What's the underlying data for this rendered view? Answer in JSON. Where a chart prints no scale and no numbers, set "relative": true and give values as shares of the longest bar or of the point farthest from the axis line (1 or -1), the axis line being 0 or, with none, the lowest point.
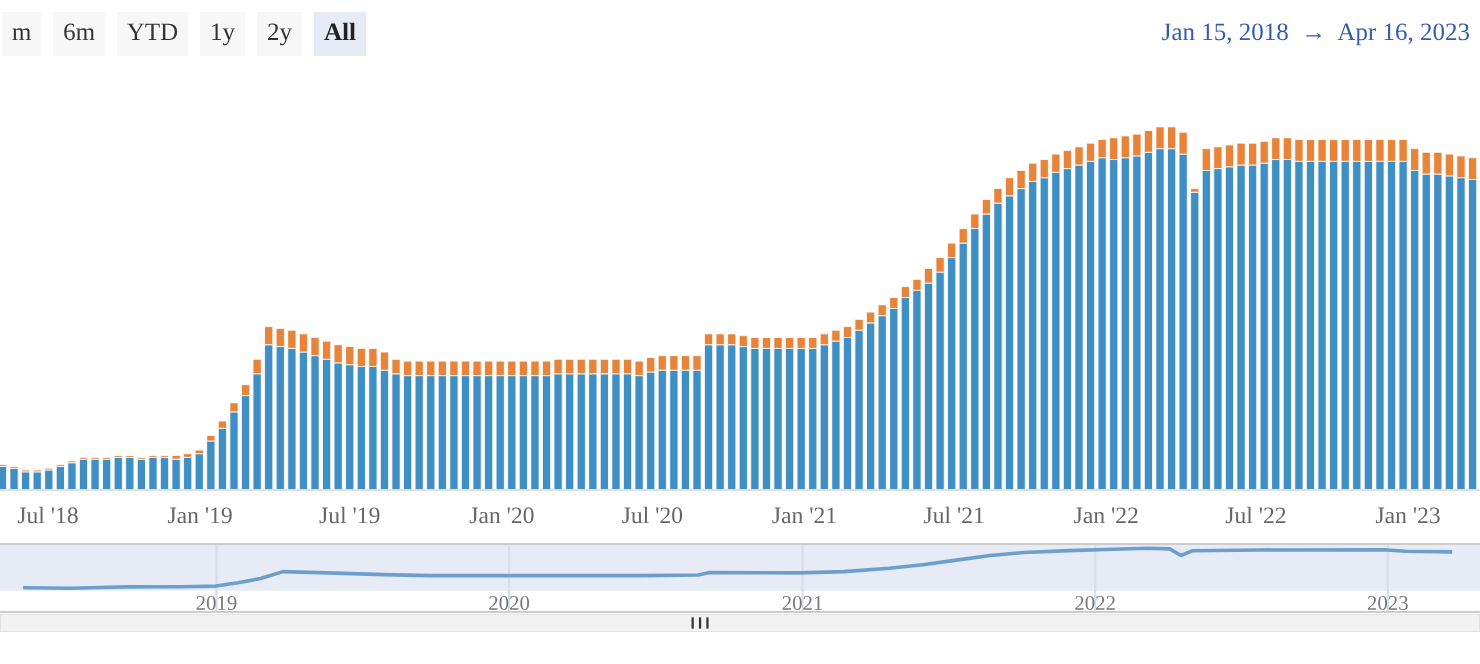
{
  "chart_data": [
    {
      "type": "bar",
      "stacked": true,
      "relative": true,
      "annotations": [
        "m",
        "6m",
        "YTD",
        "1y",
        "2y",
        "All",
        "Jan 15, 2018  →  Apr 16, 2023"
      ],
      "x": [
        "2018-05-07",
        "2018-05-21",
        "2018-06-04",
        "2018-06-18",
        "2018-07-02",
        "2018-07-16",
        "2018-07-30",
        "2018-08-13",
        "2018-08-27",
        "2018-09-10",
        "2018-09-24",
        "2018-10-08",
        "2018-10-22",
        "2018-11-05",
        "2018-11-19",
        "2018-12-03",
        "2018-12-17",
        "2018-12-31",
        "2019-01-14",
        "2019-01-28",
        "2019-02-11",
        "2019-02-25",
        "2019-03-11",
        "2019-03-25",
        "2019-04-08",
        "2019-04-22",
        "2019-05-06",
        "2019-05-20",
        "2019-06-03",
        "2019-06-17",
        "2019-07-01",
        "2019-07-15",
        "2019-07-29",
        "2019-08-12",
        "2019-08-26",
        "2019-09-09",
        "2019-09-23",
        "2019-10-07",
        "2019-10-21",
        "2019-11-04",
        "2019-11-18",
        "2019-12-02",
        "2019-12-16",
        "2019-12-30",
        "2020-01-13",
        "2020-01-27",
        "2020-02-10",
        "2020-02-24",
        "2020-03-09",
        "2020-03-23",
        "2020-04-06",
        "2020-04-20",
        "2020-05-04",
        "2020-05-18",
        "2020-06-01",
        "2020-06-15",
        "2020-06-29",
        "2020-07-13",
        "2020-07-27",
        "2020-08-10",
        "2020-08-24",
        "2020-09-07",
        "2020-09-21",
        "2020-10-05",
        "2020-10-19",
        "2020-11-02",
        "2020-11-16",
        "2020-11-30",
        "2020-12-14",
        "2020-12-28",
        "2021-01-11",
        "2021-01-25",
        "2021-02-08",
        "2021-02-22",
        "2021-03-08",
        "2021-03-22",
        "2021-04-05",
        "2021-04-19",
        "2021-05-03",
        "2021-05-17",
        "2021-05-31",
        "2021-06-14",
        "2021-06-28",
        "2021-07-12",
        "2021-07-26",
        "2021-08-09",
        "2021-08-23",
        "2021-09-06",
        "2021-09-20",
        "2021-10-04",
        "2021-10-18",
        "2021-11-01",
        "2021-11-15",
        "2021-11-29",
        "2021-12-13",
        "2021-12-27",
        "2022-01-10",
        "2022-01-24",
        "2022-02-07",
        "2022-02-21",
        "2022-03-07",
        "2022-03-21",
        "2022-04-04",
        "2022-04-18",
        "2022-05-02",
        "2022-05-16",
        "2022-05-30",
        "2022-06-13",
        "2022-06-27",
        "2022-07-11",
        "2022-07-25",
        "2022-08-08",
        "2022-08-22",
        "2022-09-05",
        "2022-09-19",
        "2022-10-03",
        "2022-10-17",
        "2022-10-31",
        "2022-11-14",
        "2022-11-28",
        "2022-12-12",
        "2022-12-26",
        "2023-01-09",
        "2023-01-23",
        "2023-02-06",
        "2023-02-20",
        "2023-03-06",
        "2023-03-20"
      ],
      "series": [
        {
          "color": "#3f8fc5",
          "values": [
            0.065,
            0.06,
            0.05,
            0.05,
            0.055,
            0.065,
            0.075,
            0.085,
            0.085,
            0.085,
            0.09,
            0.09,
            0.085,
            0.09,
            0.09,
            0.085,
            0.09,
            0.1,
            0.135,
            0.17,
            0.215,
            0.26,
            0.32,
            0.4,
            0.395,
            0.39,
            0.38,
            0.37,
            0.36,
            0.35,
            0.345,
            0.34,
            0.34,
            0.33,
            0.32,
            0.315,
            0.315,
            0.315,
            0.315,
            0.315,
            0.315,
            0.315,
            0.315,
            0.315,
            0.315,
            0.315,
            0.315,
            0.315,
            0.32,
            0.32,
            0.32,
            0.32,
            0.32,
            0.32,
            0.32,
            0.315,
            0.325,
            0.33,
            0.33,
            0.33,
            0.33,
            0.4,
            0.4,
            0.4,
            0.395,
            0.39,
            0.39,
            0.39,
            0.39,
            0.39,
            0.39,
            0.4,
            0.41,
            0.42,
            0.44,
            0.46,
            0.48,
            0.5,
            0.53,
            0.55,
            0.57,
            0.6,
            0.64,
            0.68,
            0.72,
            0.76,
            0.79,
            0.81,
            0.83,
            0.85,
            0.86,
            0.875,
            0.885,
            0.895,
            0.905,
            0.915,
            0.91,
            0.915,
            0.92,
            0.93,
            0.94,
            0.94,
            0.925,
            0.82,
            0.88,
            0.885,
            0.89,
            0.895,
            0.895,
            0.9,
            0.91,
            0.91,
            0.905,
            0.905,
            0.905,
            0.905,
            0.905,
            0.905,
            0.905,
            0.905,
            0.905,
            0.905,
            0.88,
            0.87,
            0.87,
            0.865,
            0.86,
            0.855
          ]
        },
        {
          "color": "#e8833a",
          "values": [
            0.005,
            0.005,
            0.005,
            0.005,
            0.005,
            0.005,
            0.005,
            0.005,
            0.005,
            0.005,
            0.005,
            0.005,
            0.005,
            0.005,
            0.005,
            0.01,
            0.01,
            0.01,
            0.015,
            0.02,
            0.025,
            0.03,
            0.04,
            0.05,
            0.05,
            0.05,
            0.05,
            0.05,
            0.05,
            0.05,
            0.05,
            0.05,
            0.05,
            0.05,
            0.04,
            0.04,
            0.04,
            0.04,
            0.04,
            0.04,
            0.04,
            0.04,
            0.04,
            0.04,
            0.04,
            0.04,
            0.04,
            0.04,
            0.04,
            0.04,
            0.04,
            0.04,
            0.04,
            0.04,
            0.04,
            0.04,
            0.04,
            0.04,
            0.04,
            0.04,
            0.04,
            0.03,
            0.03,
            0.03,
            0.03,
            0.03,
            0.03,
            0.03,
            0.03,
            0.03,
            0.03,
            0.03,
            0.03,
            0.03,
            0.03,
            0.03,
            0.03,
            0.03,
            0.03,
            0.03,
            0.04,
            0.04,
            0.04,
            0.04,
            0.04,
            0.04,
            0.04,
            0.05,
            0.05,
            0.05,
            0.05,
            0.05,
            0.05,
            0.05,
            0.05,
            0.05,
            0.06,
            0.06,
            0.06,
            0.06,
            0.06,
            0.06,
            0.06,
            0.01,
            0.06,
            0.06,
            0.06,
            0.06,
            0.06,
            0.06,
            0.06,
            0.06,
            0.06,
            0.06,
            0.06,
            0.06,
            0.06,
            0.06,
            0.06,
            0.06,
            0.06,
            0.06,
            0.06,
            0.06,
            0.06,
            0.06,
            0.06,
            0.06
          ]
        }
      ],
      "xlim": [
        "2018-05-04",
        "2023-03-29"
      ],
      "xticks": [
        {
          "value": "2018-07-01",
          "label": "Jul '18"
        },
        {
          "value": "2019-01-01",
          "label": "Jan '19"
        },
        {
          "value": "2019-07-01",
          "label": "Jul '19"
        },
        {
          "value": "2020-01-01",
          "label": "Jan '20"
        },
        {
          "value": "2020-07-01",
          "label": "Jul '20"
        },
        {
          "value": "2021-01-01",
          "label": "Jan '21"
        },
        {
          "value": "2021-07-01",
          "label": "Jul '21"
        },
        {
          "value": "2022-01-01",
          "label": "Jan '22"
        },
        {
          "value": "2022-07-01",
          "label": "Jul '22"
        },
        {
          "value": "2023-01-01",
          "label": "Jan '23"
        }
      ],
      "tick_labels": "x"
    },
    {
      "type": "line",
      "relative": true,
      "x": [
        "2018-05-07",
        "2018-07-02",
        "2018-09-10",
        "2018-11-19",
        "2018-12-31",
        "2019-01-28",
        "2019-02-25",
        "2019-03-25",
        "2019-05-20",
        "2019-07-29",
        "2019-09-23",
        "2020-01-13",
        "2020-06-15",
        "2020-08-24",
        "2020-09-07",
        "2020-12-28",
        "2021-02-22",
        "2021-04-19",
        "2021-05-31",
        "2021-07-12",
        "2021-08-23",
        "2021-10-04",
        "2021-11-29",
        "2022-01-24",
        "2022-03-07",
        "2022-04-04",
        "2022-04-18",
        "2022-05-02",
        "2022-07-25",
        "2022-12-26",
        "2023-01-23",
        "2023-03-20"
      ],
      "series": [
        {
          "color": "#6d9fce",
          "values": [
            0.07,
            0.06,
            0.09,
            0.095,
            0.11,
            0.19,
            0.29,
            0.45,
            0.42,
            0.38,
            0.355,
            0.355,
            0.355,
            0.37,
            0.43,
            0.42,
            0.45,
            0.53,
            0.61,
            0.72,
            0.83,
            0.9,
            0.945,
            0.975,
            1.0,
            0.985,
            0.83,
            0.94,
            0.96,
            0.965,
            0.93,
            0.915
          ]
        }
      ],
      "xlim": [
        "2018-04-06",
        "2023-04-26"
      ],
      "xticks": [
        {
          "value": "2019-01-01",
          "label": "2019"
        },
        {
          "value": "2020-01-01",
          "label": "2020"
        },
        {
          "value": "2021-01-01",
          "label": "2021"
        },
        {
          "value": "2022-01-01",
          "label": "2022"
        },
        {
          "value": "2023-01-01",
          "label": "2023"
        }
      ],
      "grid": "x",
      "tick_labels": "x"
    }
  ]
}
